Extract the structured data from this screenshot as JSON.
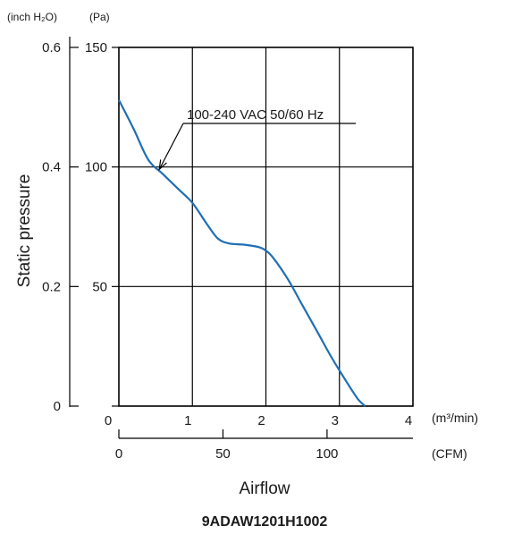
{
  "chart_data": {
    "type": "line",
    "model": "9ADAW1201H1002",
    "ylabel": "Static pressure",
    "xlabel": "Airflow",
    "y_units": {
      "inch": "(inch H₂O)",
      "pa": "(Pa)"
    },
    "x_units": {
      "m3": "(m³/min)",
      "cfm": "(CFM)"
    },
    "xlim": [
      0,
      4
    ],
    "ylim": [
      0,
      150
    ],
    "x_ticks_m3": [
      "0",
      "1",
      "2",
      "3",
      "4"
    ],
    "y_ticks_pa": [
      "0",
      "50",
      "100",
      "150"
    ],
    "y_ticks_inch": [
      "0",
      "0.2",
      "0.4",
      "0.6"
    ],
    "x_ticks_cfm": [
      "0",
      "50",
      "100"
    ],
    "grid": true,
    "series": [
      {
        "name": "100-240 VAC  50/60 Hz",
        "color": "#1f6fb5",
        "x": [
          0,
          0.2,
          0.4,
          0.6,
          0.8,
          1.0,
          1.2,
          1.35,
          1.5,
          1.7,
          1.9,
          2.0,
          2.1,
          2.3,
          2.5,
          2.7,
          2.9,
          3.1,
          3.25,
          3.35
        ],
        "y": [
          128,
          116,
          103,
          97,
          91,
          85,
          76,
          70,
          68,
          67.5,
          66.5,
          65,
          62,
          53,
          42,
          31,
          20,
          10,
          3,
          0
        ]
      }
    ]
  }
}
